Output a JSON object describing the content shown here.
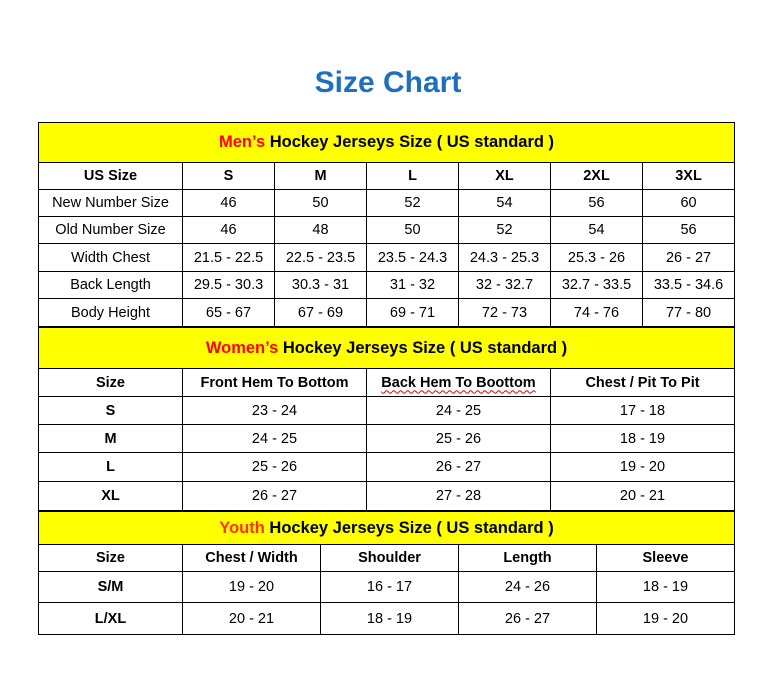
{
  "title": "Size Chart",
  "men": {
    "heading_highlight": "Men’s",
    "heading_rest": " Hockey Jerseys Size ( US standard )",
    "columns": [
      "US Size",
      "S",
      "M",
      "L",
      "XL",
      "2XL",
      "3XL"
    ],
    "rows": [
      [
        "New Number Size",
        "46",
        "50",
        "52",
        "54",
        "56",
        "60"
      ],
      [
        "Old Number Size",
        "46",
        "48",
        "50",
        "52",
        "54",
        "56"
      ],
      [
        "Width Chest",
        "21.5 - 22.5",
        "22.5 - 23.5",
        "23.5 - 24.3",
        "24.3 - 25.3",
        "25.3 - 26",
        "26 - 27"
      ],
      [
        "Back Length",
        "29.5 - 30.3",
        "30.3 - 31",
        "31 - 32",
        "32 - 32.7",
        "32.7 - 33.5",
        "33.5 - 34.6"
      ],
      [
        "Body Height",
        "65 - 67",
        "67 - 69",
        "69 - 71",
        "72 - 73",
        "74 - 76",
        "77 - 80"
      ]
    ]
  },
  "women": {
    "heading_highlight": "Women’s",
    "heading_rest": " Hockey Jerseys Size ( US standard )",
    "columns": [
      "Size",
      "Front Hem To Bottom",
      "Back Hem To Boottom",
      "Chest / Pit To Pit"
    ],
    "rows": [
      [
        "S",
        "23 - 24",
        "24 - 25",
        "17 - 18"
      ],
      [
        "M",
        "24 - 25",
        "25 - 26",
        "18 - 19"
      ],
      [
        "L",
        "25 - 26",
        "26 - 27",
        "19 - 20"
      ],
      [
        "XL",
        "26 - 27",
        "27 - 28",
        "20 - 21"
      ]
    ]
  },
  "youth": {
    "heading_highlight": "Youth",
    "heading_rest": " Hockey Jerseys Size ( US standard )",
    "columns": [
      "Size",
      "Chest / Width",
      "Shoulder",
      "Length",
      "Sleeve"
    ],
    "rows": [
      [
        "S/M",
        "19 - 20",
        "16 - 17",
        "24 - 26",
        "18 - 19"
      ],
      [
        "L/XL",
        "20 - 21",
        "18 - 19",
        "26 - 27",
        "19 - 20"
      ]
    ]
  },
  "colors": {
    "title": "#1f6fbf",
    "band": "#ffff00",
    "men_highlight": "#ff0000",
    "youth_highlight": "#ff3300"
  }
}
